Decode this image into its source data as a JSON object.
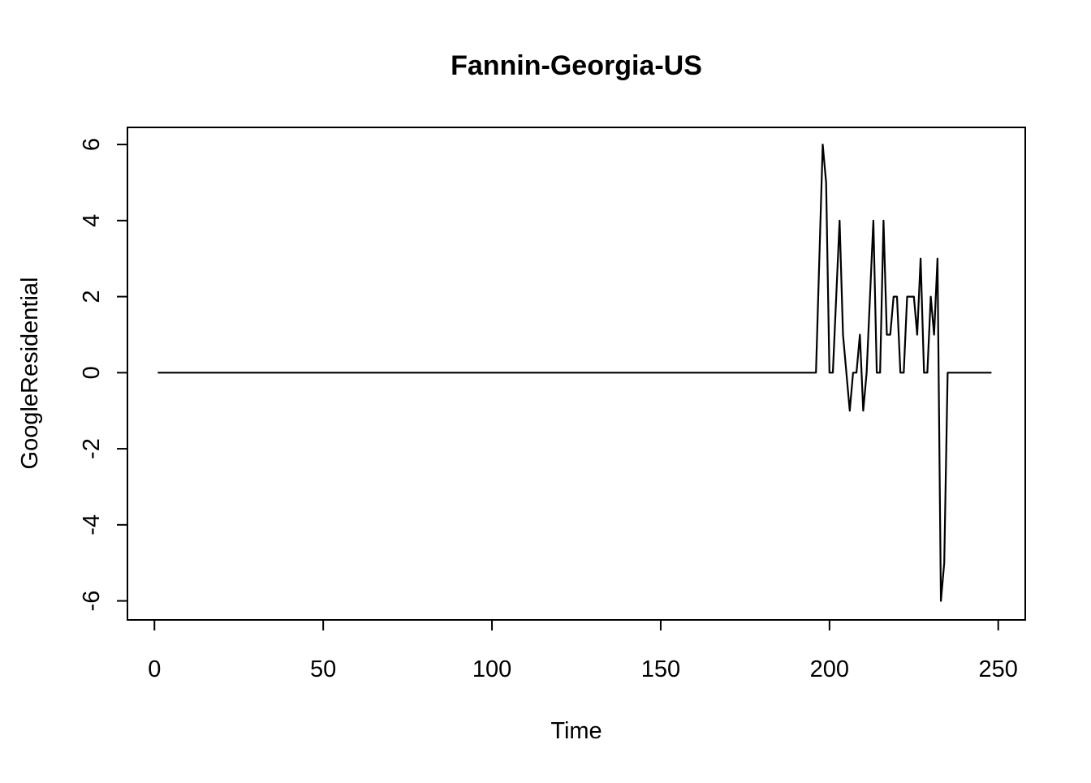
{
  "chart_data": {
    "type": "line",
    "title": "Fannin-Georgia-US",
    "xlabel": "Time",
    "ylabel": "GoogleResidential",
    "xlim": [
      -8,
      258
    ],
    "ylim": [
      -6.5,
      6.45
    ],
    "x_ticks": [
      0,
      50,
      100,
      150,
      200,
      250
    ],
    "x_tick_labels": [
      "0",
      "50",
      "100",
      "150",
      "200",
      "250"
    ],
    "y_ticks": [
      -6,
      -4,
      -2,
      0,
      2,
      4,
      6
    ],
    "y_tick_labels": [
      "-6",
      "-4",
      "-2",
      "0",
      "2",
      "4",
      "6"
    ],
    "grid": false,
    "line_color": "#000000",
    "series": [
      {
        "name": "GoogleResidential",
        "points": [
          [
            1,
            0
          ],
          [
            196,
            0
          ],
          [
            198,
            6
          ],
          [
            199,
            5
          ],
          [
            200,
            0
          ],
          [
            201,
            0
          ],
          [
            203,
            4
          ],
          [
            204,
            1
          ],
          [
            206,
            -1
          ],
          [
            207,
            0
          ],
          [
            208,
            0
          ],
          [
            209,
            1
          ],
          [
            210,
            -1
          ],
          [
            211,
            0
          ],
          [
            213,
            4
          ],
          [
            214,
            0
          ],
          [
            215,
            0
          ],
          [
            216,
            4
          ],
          [
            217,
            1
          ],
          [
            218,
            1
          ],
          [
            219,
            2
          ],
          [
            220,
            2
          ],
          [
            221,
            0
          ],
          [
            222,
            0
          ],
          [
            223,
            2
          ],
          [
            224,
            2
          ],
          [
            225,
            2
          ],
          [
            226,
            1
          ],
          [
            227,
            3
          ],
          [
            228,
            0
          ],
          [
            229,
            0
          ],
          [
            230,
            2
          ],
          [
            231,
            1
          ],
          [
            232,
            3
          ],
          [
            233,
            -6
          ],
          [
            234,
            -5
          ],
          [
            235,
            0
          ],
          [
            248,
            0
          ]
        ]
      }
    ]
  }
}
